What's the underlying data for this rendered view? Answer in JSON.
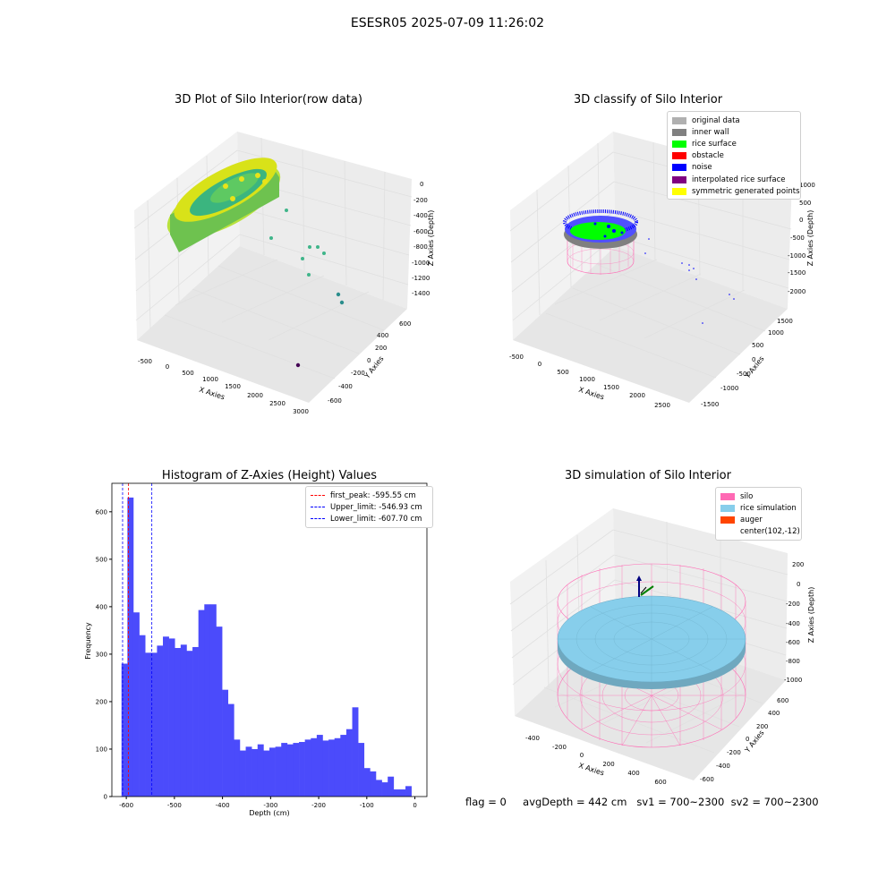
{
  "figure": {
    "suptitle": "ESESR05 2025-07-09 11:26:02"
  },
  "colors": {
    "histogram": "#4b4bfb",
    "silo": "#ff69b4",
    "rice_simulation": "#87ceeb",
    "auger": "#ff4500",
    "inner_wall": "#808080",
    "rice_surface": "#00ff00",
    "obstacle": "#ff0000",
    "noise": "#0000ff",
    "interpolated": "#800080",
    "symmetric": "#ffff00",
    "original": "#b0b0b0"
  },
  "plot_raw": {
    "title": "3D Plot of Silo Interior(row data)",
    "xlabel": "X Axies",
    "ylabel": "Y Axies",
    "zlabel": "Z Axies (Depth)",
    "x_ticks": [
      "-500",
      "0",
      "500",
      "1000",
      "1500",
      "2000",
      "2500",
      "3000"
    ],
    "y_ticks": [
      "-600",
      "-400",
      "-200",
      "0",
      "200",
      "400",
      "600"
    ],
    "z_ticks": [
      "0",
      "-200",
      "-400",
      "-600",
      "-800",
      "-1000",
      "-1200",
      "-1400"
    ]
  },
  "plot_classify": {
    "title": "3D classify of Silo Interior",
    "xlabel": "X Axies",
    "ylabel": "Y Axies",
    "zlabel": "Z Axies (Depth)",
    "x_ticks": [
      "-500",
      "0",
      "500",
      "1000",
      "1500",
      "2000",
      "2500"
    ],
    "y_ticks": [
      "-1500",
      "-1000",
      "-500",
      "0",
      "500",
      "1000",
      "1500"
    ],
    "z_ticks": [
      "1000",
      "500",
      "0",
      "-500",
      "-1000",
      "-1500",
      "-2000"
    ],
    "legend": [
      "original data",
      "inner wall",
      "rice surface",
      "obstacle",
      "noise",
      "interpolated rice surface",
      "symmetric generated points"
    ]
  },
  "plot_sim": {
    "title": "3D simulation of Silo Interior",
    "xlabel": "X Axies",
    "ylabel": "Y Axies",
    "zlabel": "Z Axies (Depth)",
    "x_ticks": [
      "-400",
      "-200",
      "0",
      "200",
      "400",
      "600"
    ],
    "y_ticks": [
      "-600",
      "-400",
      "-200",
      "0",
      "200",
      "400",
      "600"
    ],
    "z_ticks": [
      "200",
      "0",
      "-200",
      "-400",
      "-600",
      "-800",
      "-1000"
    ],
    "legend": [
      "silo",
      "rice simulation",
      "auger",
      "center(102,-12)"
    ]
  },
  "footer": {
    "flag": "flag = 0",
    "avg_depth": "avgDepth = 442 cm",
    "sv1": "sv1 = 700~2300",
    "sv2": "sv2 = 700~2300"
  },
  "chart_data": [
    {
      "type": "bar",
      "title": "Histogram of Z-Axies (Height) Values",
      "xlabel": "Depth (cm)",
      "ylabel": "Frequency",
      "xlim": [
        -630,
        25
      ],
      "ylim": [
        0,
        660
      ],
      "x_ticks": [
        -600,
        -500,
        -400,
        -300,
        -200,
        -100,
        0
      ],
      "y_ticks": [
        0,
        100,
        200,
        300,
        400,
        500,
        600
      ],
      "bin_start": -610,
      "bin_width": 12.3,
      "values": [
        280,
        630,
        388,
        340,
        303,
        303,
        318,
        337,
        333,
        313,
        320,
        307,
        315,
        393,
        405,
        405,
        358,
        225,
        195,
        120,
        97,
        105,
        100,
        110,
        97,
        103,
        105,
        113,
        110,
        113,
        115,
        120,
        123,
        130,
        118,
        120,
        123,
        130,
        142,
        188,
        113,
        60,
        53,
        35,
        30,
        42,
        15,
        15,
        22
      ],
      "lines": [
        {
          "label": "first_peak: -595.55 cm",
          "x": -595.55,
          "color": "#ff0000"
        },
        {
          "label": "Upper_limit: -546.93 cm",
          "x": -546.93,
          "color": "#0000ff"
        },
        {
          "label": "Lower_limit: -607.70 cm",
          "x": -607.7,
          "color": "#0000ff"
        }
      ]
    }
  ]
}
